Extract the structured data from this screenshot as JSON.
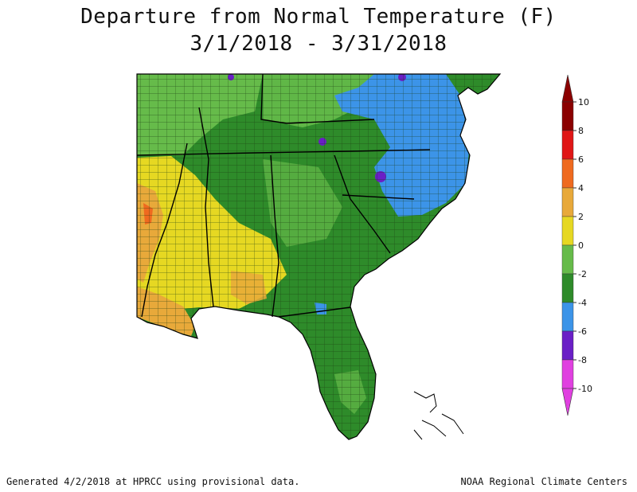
{
  "title": "Departure from Normal Temperature (F)",
  "subtitle": "3/1/2018 - 3/31/2018",
  "footer_left": "Generated 4/2/2018 at HPRCC using provisional data.",
  "footer_right": "NOAA Regional Climate Centers",
  "legend": {
    "ticks": [
      "10",
      "8",
      "6",
      "4",
      "2",
      "0",
      "-2",
      "-4",
      "-6",
      "-8",
      "-10"
    ],
    "bins": [
      {
        "range": "8 to 10",
        "color": "#8b0000"
      },
      {
        "range": "6 to 8",
        "color": "#e01616"
      },
      {
        "range": "4 to 6",
        "color": "#ef6a1f"
      },
      {
        "range": "2 to 4",
        "color": "#e8a93a"
      },
      {
        "range": "0 to 2",
        "color": "#e6d822"
      },
      {
        "range": "-2 to 0",
        "color": "#66bb4a"
      },
      {
        "range": "-4 to -2",
        "color": "#2e8b2a"
      },
      {
        "range": "-6 to -4",
        "color": "#3c94e8"
      },
      {
        "range": "-8 to -6",
        "color": "#6a1fc6"
      },
      {
        "range": "-10 to -8",
        "color": "#e040e0"
      }
    ]
  },
  "colors": {
    "ocean": "#ffffff",
    "county_lines": "#1a3a10",
    "state_lines": "#000000"
  }
}
